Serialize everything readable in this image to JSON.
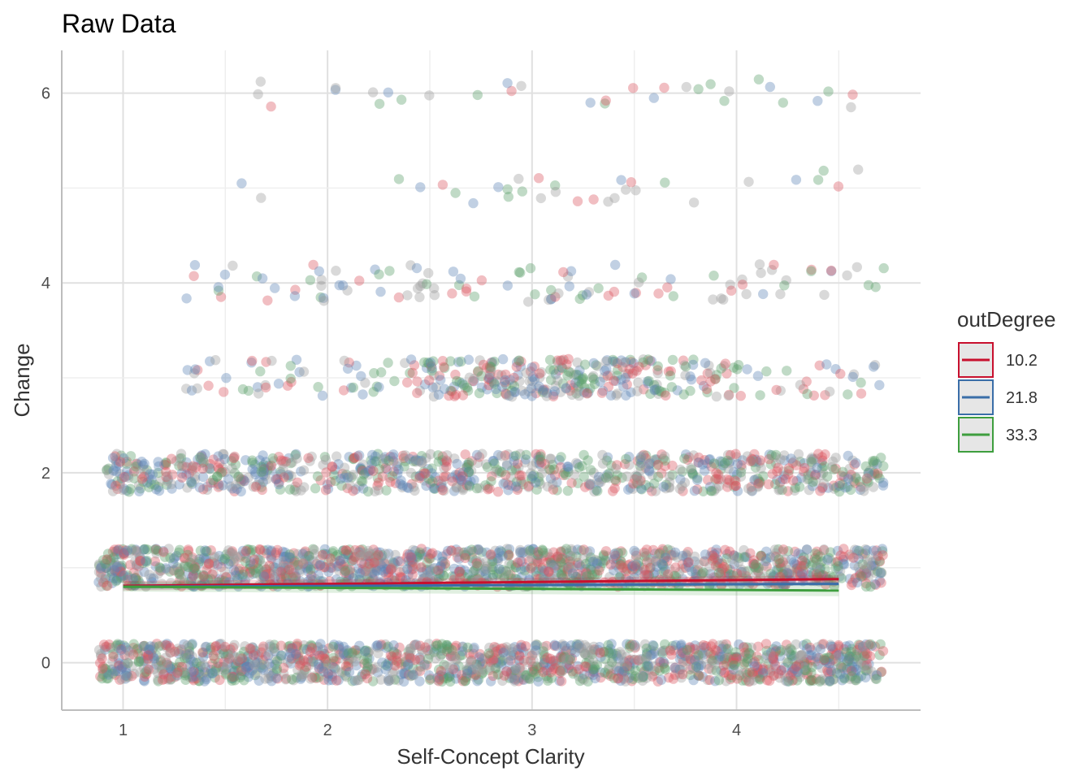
{
  "chart_data": {
    "type": "scatter",
    "title": "Raw Data",
    "xlabel": "Self-Concept Clarity",
    "ylabel": "Change",
    "xlim": [
      0.7,
      4.9
    ],
    "ylim": [
      -0.5,
      6.45
    ],
    "x_ticks": [
      1,
      2,
      3,
      4
    ],
    "y_ticks": [
      0,
      2,
      4,
      6
    ],
    "grid": true,
    "legend": {
      "title": "outDegree",
      "placement": "right",
      "entries": [
        {
          "label": "10.2",
          "color": "#c8102e"
        },
        {
          "label": "21.8",
          "color": "#3a6ea8"
        },
        {
          "label": "33.3",
          "color": "#3e9e3e"
        }
      ]
    },
    "point_colors": [
      "#d9545f",
      "#5b84b5",
      "#5a9e6a",
      "#9a9a9a"
    ],
    "point_opacity": 0.38,
    "jitter_rows": [
      {
        "change": 0,
        "x_range": [
          0.88,
          4.72
        ],
        "spread": 0.2,
        "density": "very high"
      },
      {
        "change": 1,
        "x_range": [
          0.88,
          4.72
        ],
        "spread": 0.2,
        "density": "very high"
      },
      {
        "change": 2,
        "x_range": [
          0.92,
          4.72
        ],
        "spread": 0.2,
        "density": "high"
      },
      {
        "change": 3,
        "x_range": [
          1.25,
          4.72
        ],
        "spread": 0.2,
        "density": "medium"
      },
      {
        "change": 4,
        "x_range": [
          1.25,
          4.72
        ],
        "spread": 0.2,
        "density": "low"
      },
      {
        "change": 5,
        "x_range": [
          1.55,
          4.6
        ],
        "spread": 0.2,
        "density": "sparse"
      },
      {
        "change": 6,
        "x_range": [
          1.6,
          4.6
        ],
        "spread": 0.15,
        "density": "sparse"
      }
    ],
    "series": [
      {
        "name": "10.2",
        "x": [
          1.0,
          4.5
        ],
        "y": [
          0.81,
          0.88
        ],
        "ci": [
          [
            0.76,
            0.86
          ],
          [
            0.84,
            0.92
          ]
        ],
        "color": "#c8102e"
      },
      {
        "name": "21.8",
        "x": [
          1.0,
          4.5
        ],
        "y": [
          0.8,
          0.83
        ],
        "ci": [
          [
            0.77,
            0.83
          ],
          [
            0.81,
            0.85
          ]
        ],
        "color": "#3a6ea8"
      },
      {
        "name": "33.3",
        "x": [
          1.0,
          4.5
        ],
        "y": [
          0.8,
          0.76
        ],
        "ci": [
          [
            0.75,
            0.85
          ],
          [
            0.7,
            0.82
          ]
        ],
        "color": "#3e9e3e"
      }
    ]
  }
}
